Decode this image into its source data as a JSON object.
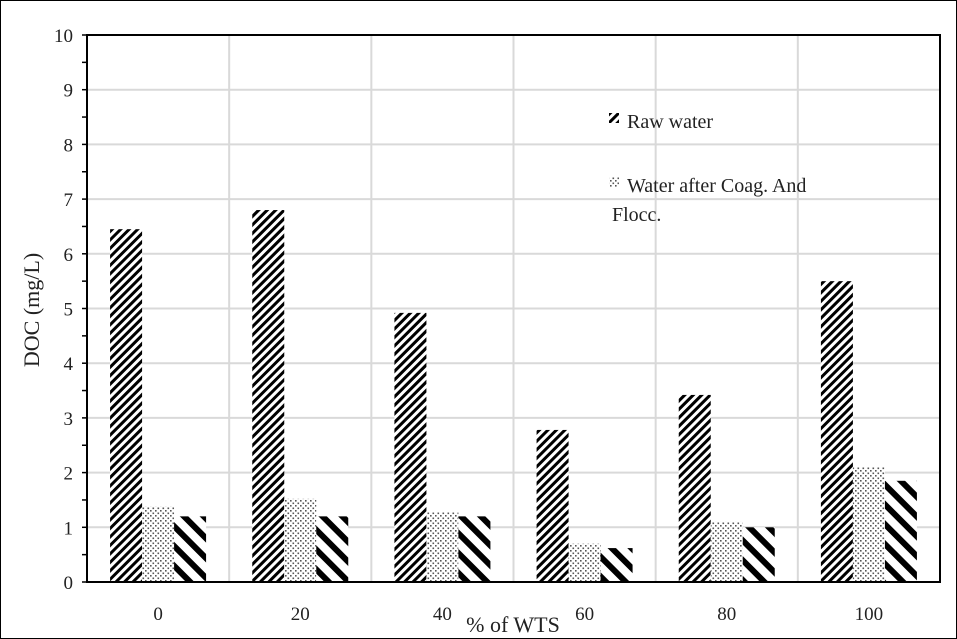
{
  "chart_data": {
    "type": "bar",
    "title": "",
    "xlabel": "% of WTS",
    "ylabel": "DOC (mg/L)",
    "ylim": [
      0,
      10
    ],
    "yticks": [
      "0",
      "1",
      "2",
      "3",
      "4",
      "5",
      "6",
      "7",
      "8",
      "9",
      "10"
    ],
    "categories": [
      "0",
      "20",
      "40",
      "60",
      "80",
      "100"
    ],
    "grid": true,
    "legend_position": "upper-right inside plot",
    "series": [
      {
        "name": "Raw water",
        "pattern": "dense-diagonal",
        "values": [
          6.45,
          6.8,
          4.92,
          2.78,
          3.42,
          5.5
        ]
      },
      {
        "name": "Water after Coag. And Flocc.",
        "pattern": "dots",
        "values": [
          1.38,
          1.52,
          1.27,
          0.7,
          1.1,
          2.1
        ]
      },
      {
        "pattern": "wide-diagonal",
        "values": [
          1.2,
          1.2,
          1.2,
          0.62,
          1.0,
          1.85
        ]
      }
    ],
    "legend_lines": [
      [
        "Raw water"
      ],
      [
        "Water after Coag. And",
        "Flocc."
      ]
    ]
  },
  "colors": {
    "bar": "#000000",
    "grid": "#d9d9d9",
    "axis": "#000000"
  }
}
